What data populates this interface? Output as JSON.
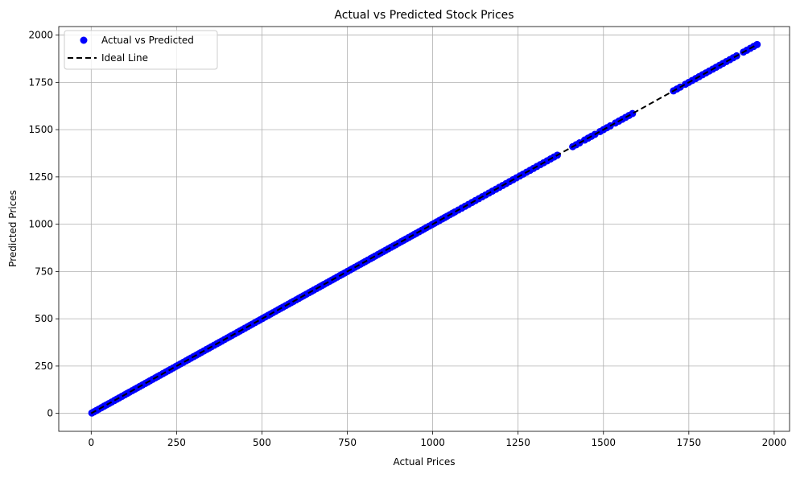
{
  "chart_data": {
    "type": "scatter",
    "title": "Actual vs Predicted Stock Prices",
    "xlabel": "Actual Prices",
    "ylabel": "Predicted Prices",
    "xlim": [
      -95,
      2045
    ],
    "ylim": [
      -95,
      2045
    ],
    "xticks": [
      0,
      250,
      500,
      750,
      1000,
      1250,
      1500,
      1750,
      2000
    ],
    "yticks": [
      0,
      250,
      500,
      750,
      1000,
      1250,
      1500,
      1750,
      2000
    ],
    "xtick_labels": [
      "0",
      "250",
      "500",
      "750",
      "1000",
      "1250",
      "1500",
      "1750",
      "2000"
    ],
    "ytick_labels": [
      "0",
      "250",
      "500",
      "750",
      "1000",
      "1250",
      "1500",
      "1750",
      "2000"
    ],
    "grid": true,
    "legend_position": "top-left",
    "series": [
      {
        "name": "Actual vs Predicted",
        "kind": "scatter",
        "color": "#0000ff",
        "x": [
          2,
          8,
          15,
          22,
          30,
          38,
          45,
          52,
          60,
          68,
          75,
          82,
          90,
          98,
          105,
          112,
          120,
          128,
          135,
          142,
          150,
          158,
          165,
          172,
          180,
          188,
          195,
          202,
          210,
          218,
          225,
          232,
          240,
          248,
          255,
          262,
          270,
          278,
          285,
          292,
          300,
          308,
          315,
          322,
          330,
          338,
          345,
          352,
          360,
          368,
          375,
          382,
          390,
          398,
          405,
          412,
          420,
          428,
          435,
          442,
          450,
          458,
          465,
          472,
          480,
          488,
          495,
          502,
          510,
          518,
          525,
          532,
          540,
          548,
          555,
          562,
          570,
          578,
          585,
          592,
          600,
          608,
          615,
          622,
          630,
          638,
          645,
          652,
          660,
          668,
          675,
          682,
          690,
          698,
          705,
          712,
          720,
          728,
          735,
          742,
          750,
          758,
          765,
          772,
          780,
          788,
          795,
          802,
          810,
          818,
          825,
          832,
          840,
          848,
          855,
          862,
          870,
          878,
          885,
          892,
          900,
          908,
          915,
          922,
          930,
          938,
          945,
          952,
          960,
          968,
          975,
          982,
          990,
          998,
          1005,
          1012,
          1020,
          1028,
          1035,
          1042,
          1050,
          1058,
          1065,
          1075,
          1085,
          1095,
          1105,
          1115,
          1125,
          1135,
          1145,
          1155,
          1165,
          1175,
          1185,
          1195,
          1205,
          1215,
          1225,
          1235,
          1245,
          1255,
          1265,
          1275,
          1285,
          1295,
          1305,
          1315,
          1325,
          1335,
          1345,
          1355,
          1365,
          1410,
          1420,
          1430,
          1445,
          1455,
          1465,
          1475,
          1490,
          1500,
          1510,
          1520,
          1535,
          1545,
          1555,
          1565,
          1575,
          1585,
          1705,
          1715,
          1725,
          1740,
          1750,
          1760,
          1770,
          1780,
          1790,
          1800,
          1810,
          1820,
          1830,
          1840,
          1850,
          1860,
          1870,
          1880,
          1890,
          1910,
          1920,
          1930,
          1940,
          1950
        ],
        "y": [
          2,
          8,
          15,
          22,
          30,
          38,
          45,
          52,
          60,
          68,
          75,
          82,
          90,
          98,
          105,
          112,
          120,
          128,
          135,
          142,
          150,
          158,
          165,
          172,
          180,
          188,
          195,
          202,
          210,
          218,
          225,
          232,
          240,
          248,
          255,
          262,
          270,
          278,
          285,
          292,
          300,
          308,
          315,
          322,
          330,
          338,
          345,
          352,
          360,
          368,
          375,
          382,
          390,
          398,
          405,
          412,
          420,
          428,
          435,
          442,
          450,
          458,
          465,
          472,
          480,
          488,
          495,
          502,
          510,
          518,
          525,
          532,
          540,
          548,
          555,
          562,
          570,
          578,
          585,
          592,
          600,
          608,
          615,
          622,
          630,
          638,
          645,
          652,
          660,
          668,
          675,
          682,
          690,
          698,
          705,
          712,
          720,
          728,
          735,
          742,
          750,
          758,
          765,
          772,
          780,
          788,
          795,
          802,
          810,
          818,
          825,
          832,
          840,
          848,
          855,
          862,
          870,
          878,
          885,
          892,
          900,
          908,
          915,
          922,
          930,
          938,
          945,
          952,
          960,
          968,
          975,
          982,
          990,
          998,
          1005,
          1012,
          1020,
          1028,
          1035,
          1042,
          1050,
          1058,
          1065,
          1075,
          1085,
          1095,
          1105,
          1115,
          1125,
          1135,
          1145,
          1155,
          1165,
          1175,
          1185,
          1195,
          1205,
          1215,
          1225,
          1235,
          1245,
          1255,
          1265,
          1275,
          1285,
          1295,
          1305,
          1315,
          1325,
          1335,
          1345,
          1355,
          1365,
          1410,
          1420,
          1430,
          1445,
          1455,
          1465,
          1475,
          1490,
          1500,
          1510,
          1520,
          1535,
          1545,
          1555,
          1565,
          1575,
          1585,
          1705,
          1715,
          1725,
          1740,
          1750,
          1760,
          1770,
          1780,
          1790,
          1800,
          1810,
          1820,
          1830,
          1840,
          1850,
          1860,
          1870,
          1880,
          1890,
          1910,
          1920,
          1930,
          1940,
          1950
        ]
      },
      {
        "name": "Ideal Line",
        "kind": "line",
        "style": "dashed",
        "color": "#000000",
        "x": [
          0,
          1950
        ],
        "y": [
          0,
          1950
        ]
      }
    ]
  }
}
